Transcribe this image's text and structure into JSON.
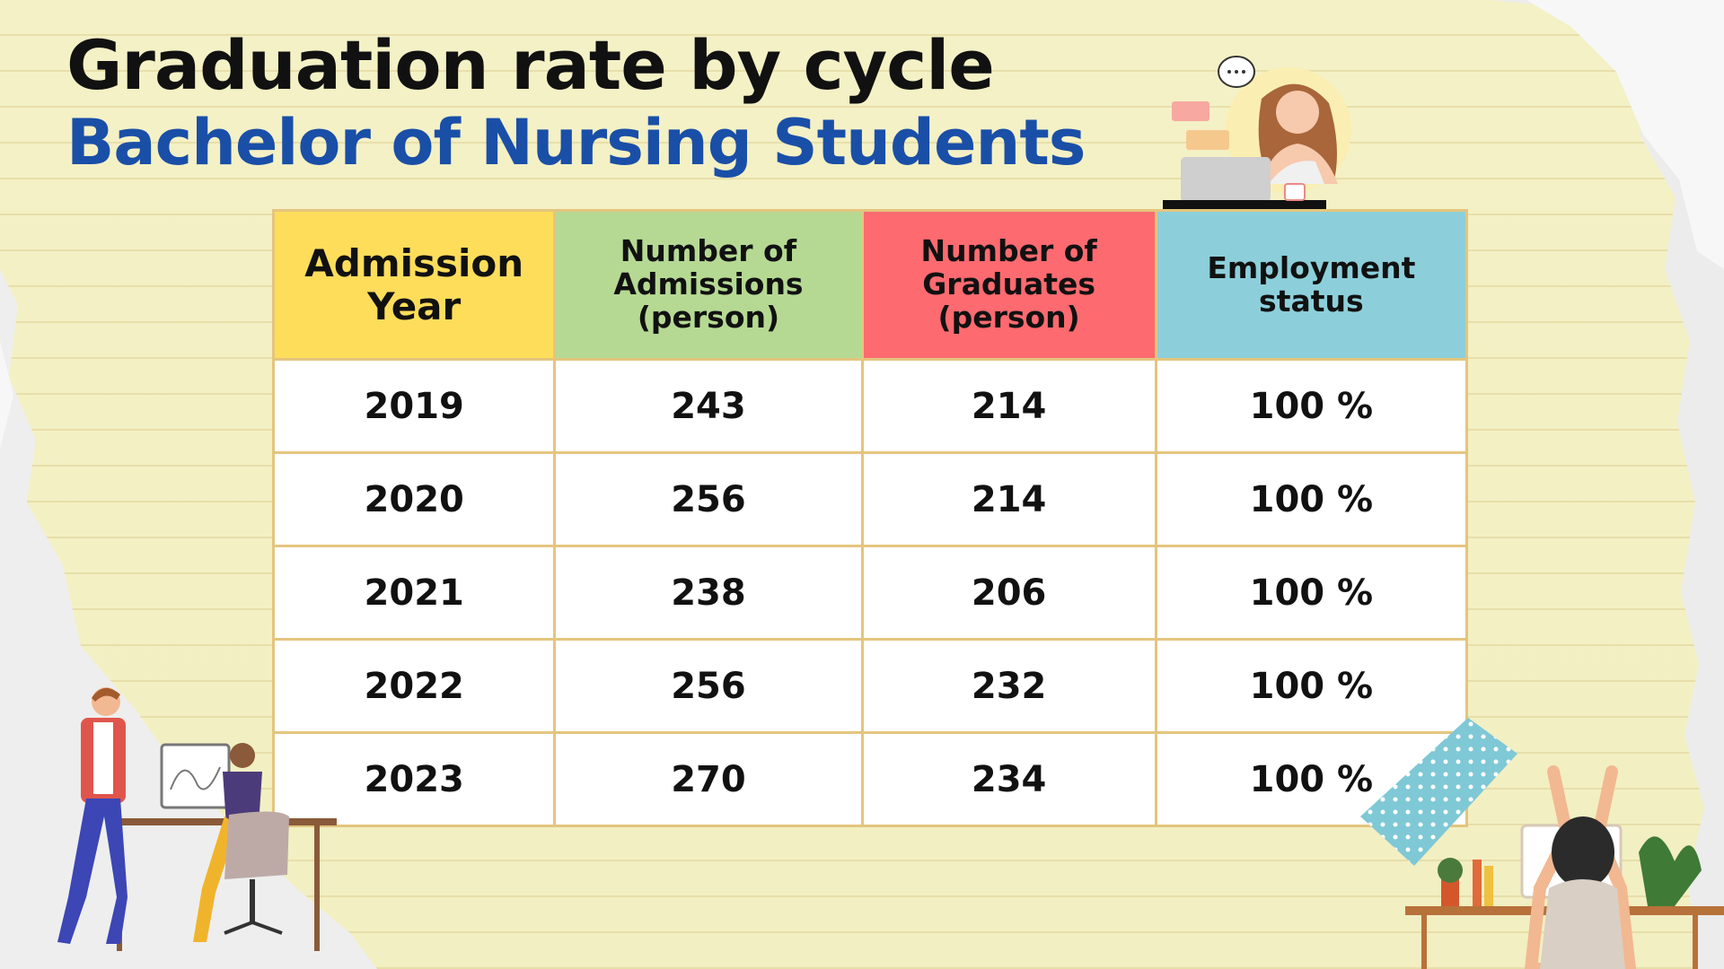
{
  "slide": {
    "title": "Graduation rate by cycle",
    "subtitle": "Bachelor of Nursing Students"
  },
  "table": {
    "headers": [
      "Admission Year",
      "Number of Admissions (person)",
      "Number of Graduates (person)",
      "Employment status"
    ],
    "rows": [
      [
        "2019",
        "243",
        "214",
        "100 %"
      ],
      [
        "2020",
        "256",
        "214",
        "100 %"
      ],
      [
        "2021",
        "238",
        "206",
        "100 %"
      ],
      [
        "2022",
        "256",
        "232",
        "100 %"
      ],
      [
        "2023",
        "270",
        "234",
        "100 %"
      ]
    ]
  },
  "colors": {
    "title": "#111111",
    "subtitle": "#1a4fa8",
    "header_year": "#fedd5b",
    "header_admissions": "#b5d993",
    "header_graduates": "#fd6a70",
    "header_employment": "#8ccfda",
    "background": "#f3f0c4"
  },
  "icons": [
    "woman-laptop-illustration",
    "two-people-desk-illustration",
    "stretching-woman-illustration",
    "washi-tape",
    "speech-bubble-icon"
  ]
}
